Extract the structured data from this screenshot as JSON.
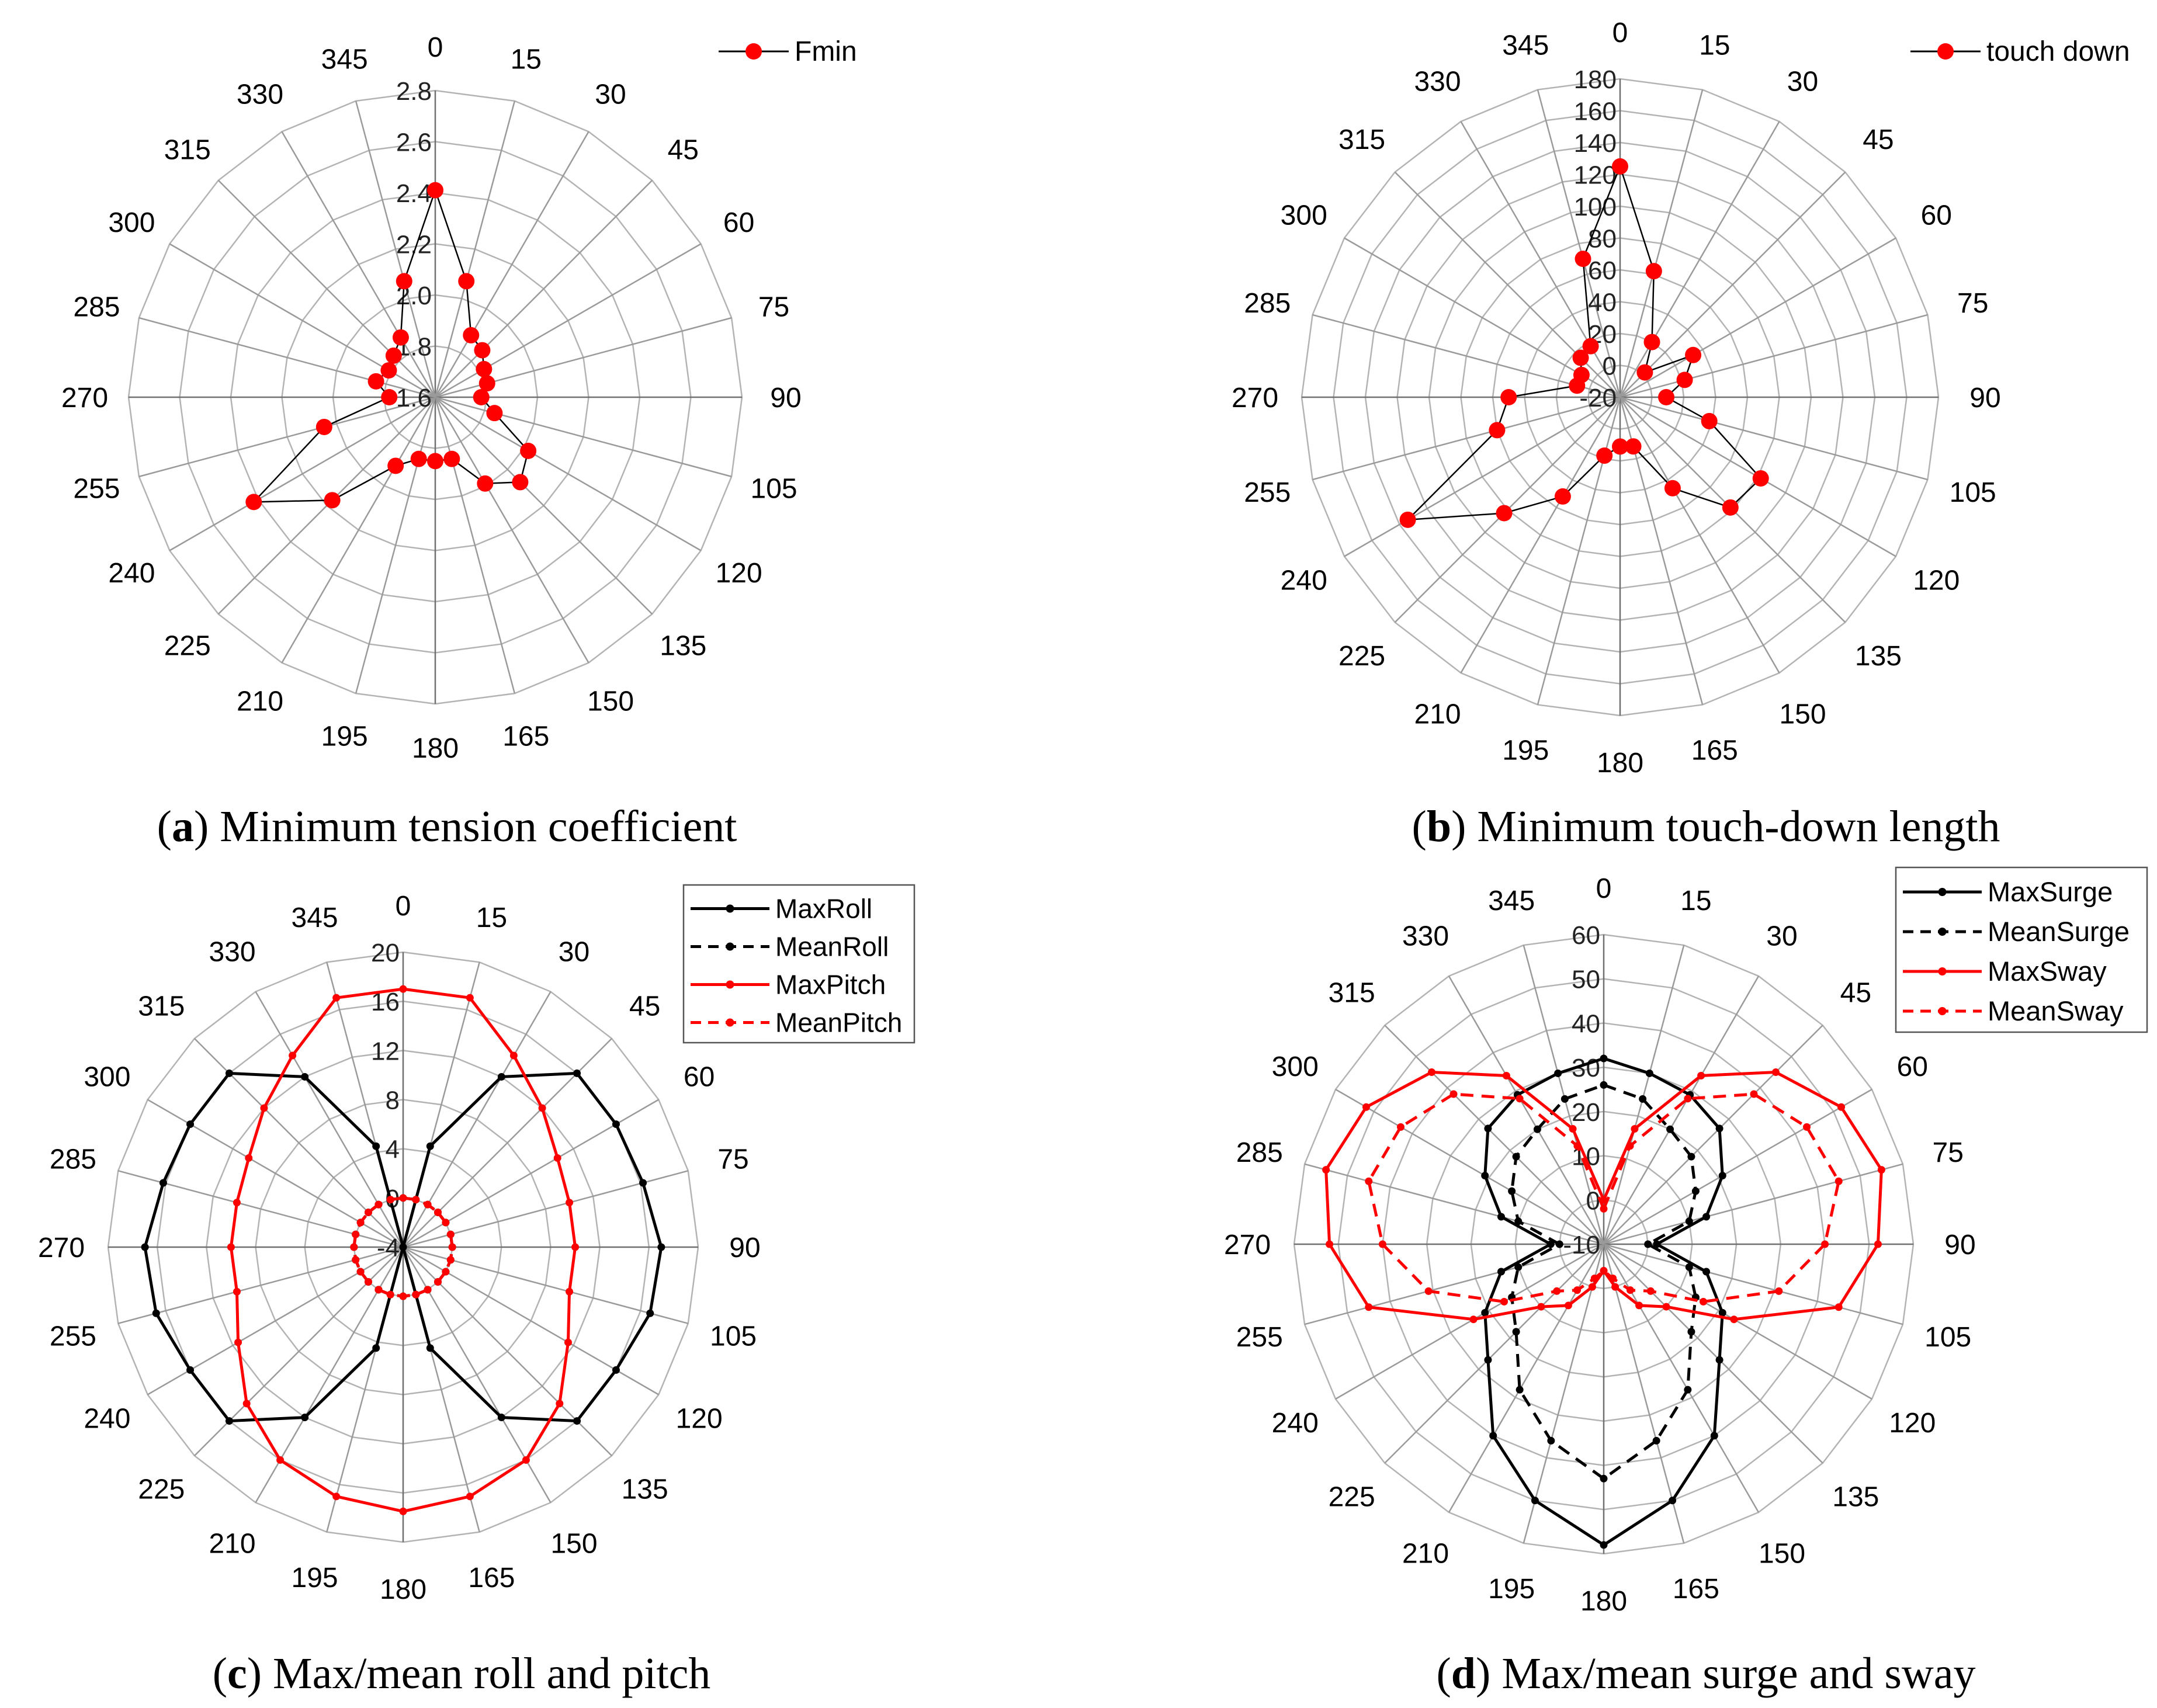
{
  "chart_data": [
    {
      "type": "radar",
      "caption_letter": "a",
      "caption": "Minimum tension coefficient",
      "angle_labels": [
        "0",
        "15",
        "30",
        "45",
        "60",
        "75",
        "90",
        "105",
        "120",
        "135",
        "150",
        "165",
        "180",
        "195",
        "210",
        "225",
        "240",
        "255",
        "270",
        "285",
        "300",
        "315",
        "330",
        "345"
      ],
      "radial_range": [
        1.6,
        2.8
      ],
      "radial_ticks": [
        "1.6",
        "1.8",
        "2.0",
        "2.2",
        "2.4",
        "2.6",
        "2.8"
      ],
      "radial_tick_values": [
        1.6,
        1.8,
        2.0,
        2.2,
        2.4,
        2.6,
        2.8
      ],
      "legend_position": "top-right",
      "series": [
        {
          "name": "Fmin",
          "color": "#ff0000",
          "line_color": "#000000",
          "line": "solid",
          "marker": "big-dot",
          "values": [
            2.41,
            2.07,
            1.88,
            1.86,
            1.82,
            1.81,
            1.78,
            1.84,
            2.02,
            2.07,
            1.99,
            1.85,
            1.85,
            1.85,
            1.91,
            2.17,
            2.42,
            2.05,
            1.78,
            1.84,
            1.81,
            1.83,
            1.87,
            2.07
          ]
        }
      ]
    },
    {
      "type": "radar",
      "caption_letter": "b",
      "caption": "Minimum touch-down length",
      "angle_labels": [
        "0",
        "15",
        "30",
        "45",
        "60",
        "75",
        "90",
        "105",
        "120",
        "135",
        "150",
        "165",
        "180",
        "195",
        "210",
        "225",
        "240",
        "255",
        "270",
        "285",
        "300",
        "315",
        "330",
        "345"
      ],
      "radial_range": [
        -20,
        180
      ],
      "radial_ticks": [
        "-20",
        "0",
        "20",
        "40",
        "60",
        "80",
        "100",
        "120",
        "140",
        "160",
        "180"
      ],
      "radial_tick_values": [
        -20,
        0,
        20,
        40,
        60,
        80,
        100,
        120,
        140,
        160,
        180
      ],
      "legend_position": "top-right",
      "series": [
        {
          "name": "touch down",
          "color": "#ff0000",
          "line_color": "#000000",
          "line": "solid",
          "marker": "big-dot",
          "values": [
            125,
            62,
            20,
            2,
            33,
            22,
            9,
            38,
            82,
            78,
            46,
            12,
            11,
            18,
            52,
            83,
            134,
            60,
            50,
            8,
            8,
            15,
            17,
            70
          ]
        }
      ]
    },
    {
      "type": "radar",
      "caption_letter": "c",
      "caption": "Max/mean roll and pitch",
      "angle_labels": [
        "0",
        "15",
        "30",
        "45",
        "60",
        "75",
        "90",
        "105",
        "120",
        "135",
        "150",
        "165",
        "180",
        "195",
        "210",
        "225",
        "240",
        "255",
        "270",
        "285",
        "300",
        "315",
        "330",
        "345"
      ],
      "radial_range": [
        -4,
        20
      ],
      "radial_ticks": [
        "-4",
        "0",
        "4",
        "8",
        "12",
        "16",
        "20"
      ],
      "radial_tick_values": [
        -4,
        0,
        4,
        8,
        12,
        16,
        20
      ],
      "legend_position": "top-right",
      "series": [
        {
          "name": "MaxRoll",
          "color": "#000000",
          "line": "solid",
          "marker": "dot",
          "values": [
            -4,
            4.5,
            12,
            16,
            16,
            16.2,
            17,
            16.8,
            16,
            16,
            12,
            4.5,
            -4,
            4.5,
            12,
            16,
            16,
            16.8,
            17,
            16.2,
            16,
            16,
            12,
            4.5
          ]
        },
        {
          "name": "MeanRoll",
          "color": "#000000",
          "line": "dashed",
          "marker": "dot",
          "values": [
            0,
            0,
            0,
            0,
            0,
            0,
            0,
            0,
            0,
            0,
            0,
            0,
            0,
            0,
            0,
            0,
            0,
            0,
            0,
            0,
            0,
            0,
            0,
            0
          ]
        },
        {
          "name": "MaxPitch",
          "color": "#ff0000",
          "line": "solid",
          "marker": "dot",
          "values": [
            17,
            17,
            14,
            12,
            10.5,
            10,
            10,
            10,
            11.5,
            14,
            16,
            17,
            17.5,
            17,
            16,
            14,
            11.5,
            10,
            10,
            10,
            10.5,
            12,
            14,
            17
          ]
        },
        {
          "name": "MeanPitch",
          "color": "#ff0000",
          "line": "dashed",
          "marker": "dot",
          "values": [
            0,
            0,
            0,
            0,
            0,
            0,
            0,
            0,
            0,
            0,
            0,
            0,
            0,
            0,
            0,
            0,
            0,
            0,
            0,
            0,
            0,
            0,
            0,
            0
          ]
        }
      ]
    },
    {
      "type": "radar",
      "caption_letter": "d",
      "caption": "Max/mean surge and sway",
      "angle_labels": [
        "0",
        "15",
        "30",
        "45",
        "60",
        "75",
        "90",
        "105",
        "120",
        "135",
        "150",
        "165",
        "180",
        "195",
        "210",
        "225",
        "240",
        "255",
        "270",
        "285",
        "300",
        "315",
        "330",
        "345"
      ],
      "radial_range": [
        -10,
        60
      ],
      "radial_ticks": [
        "-10",
        "0",
        "10",
        "20",
        "30",
        "40",
        "50",
        "60"
      ],
      "radial_tick_values": [
        -10,
        0,
        10,
        20,
        30,
        40,
        50,
        60
      ],
      "legend_position": "top-right",
      "series": [
        {
          "name": "MaxSurge",
          "color": "#000000",
          "line": "solid",
          "marker": "dot",
          "values": [
            32,
            30,
            29,
            27,
            21,
            14,
            2,
            14,
            21,
            27,
            40,
            50,
            58,
            50,
            40,
            27,
            21,
            14,
            2,
            14,
            21,
            27,
            29,
            30
          ]
        },
        {
          "name": "MeanSurge",
          "color": "#000000",
          "line": "dashed",
          "marker": "dot",
          "values": [
            26,
            24,
            20,
            18,
            14,
            10,
            0,
            10,
            14,
            18,
            28,
            36,
            43,
            36,
            28,
            18,
            14,
            10,
            0,
            10,
            14,
            18,
            20,
            24
          ]
        },
        {
          "name": "MaxSway",
          "color": "#ff0000",
          "line": "solid",
          "marker": "dot",
          "values": [
            0,
            17,
            34,
            45,
            52,
            55,
            52,
            45,
            24,
            10,
            6,
            0,
            -4,
            0,
            6,
            10,
            24,
            45,
            52,
            55,
            52,
            45,
            34,
            17
          ]
        },
        {
          "name": "MeanSway",
          "color": "#ff0000",
          "line": "dashed",
          "marker": "dot",
          "values": [
            -2,
            13,
            28,
            38,
            43,
            45,
            40,
            31,
            16,
            5,
            2,
            -2,
            -4,
            -2,
            2,
            5,
            16,
            31,
            40,
            45,
            43,
            38,
            28,
            13
          ]
        }
      ]
    }
  ]
}
